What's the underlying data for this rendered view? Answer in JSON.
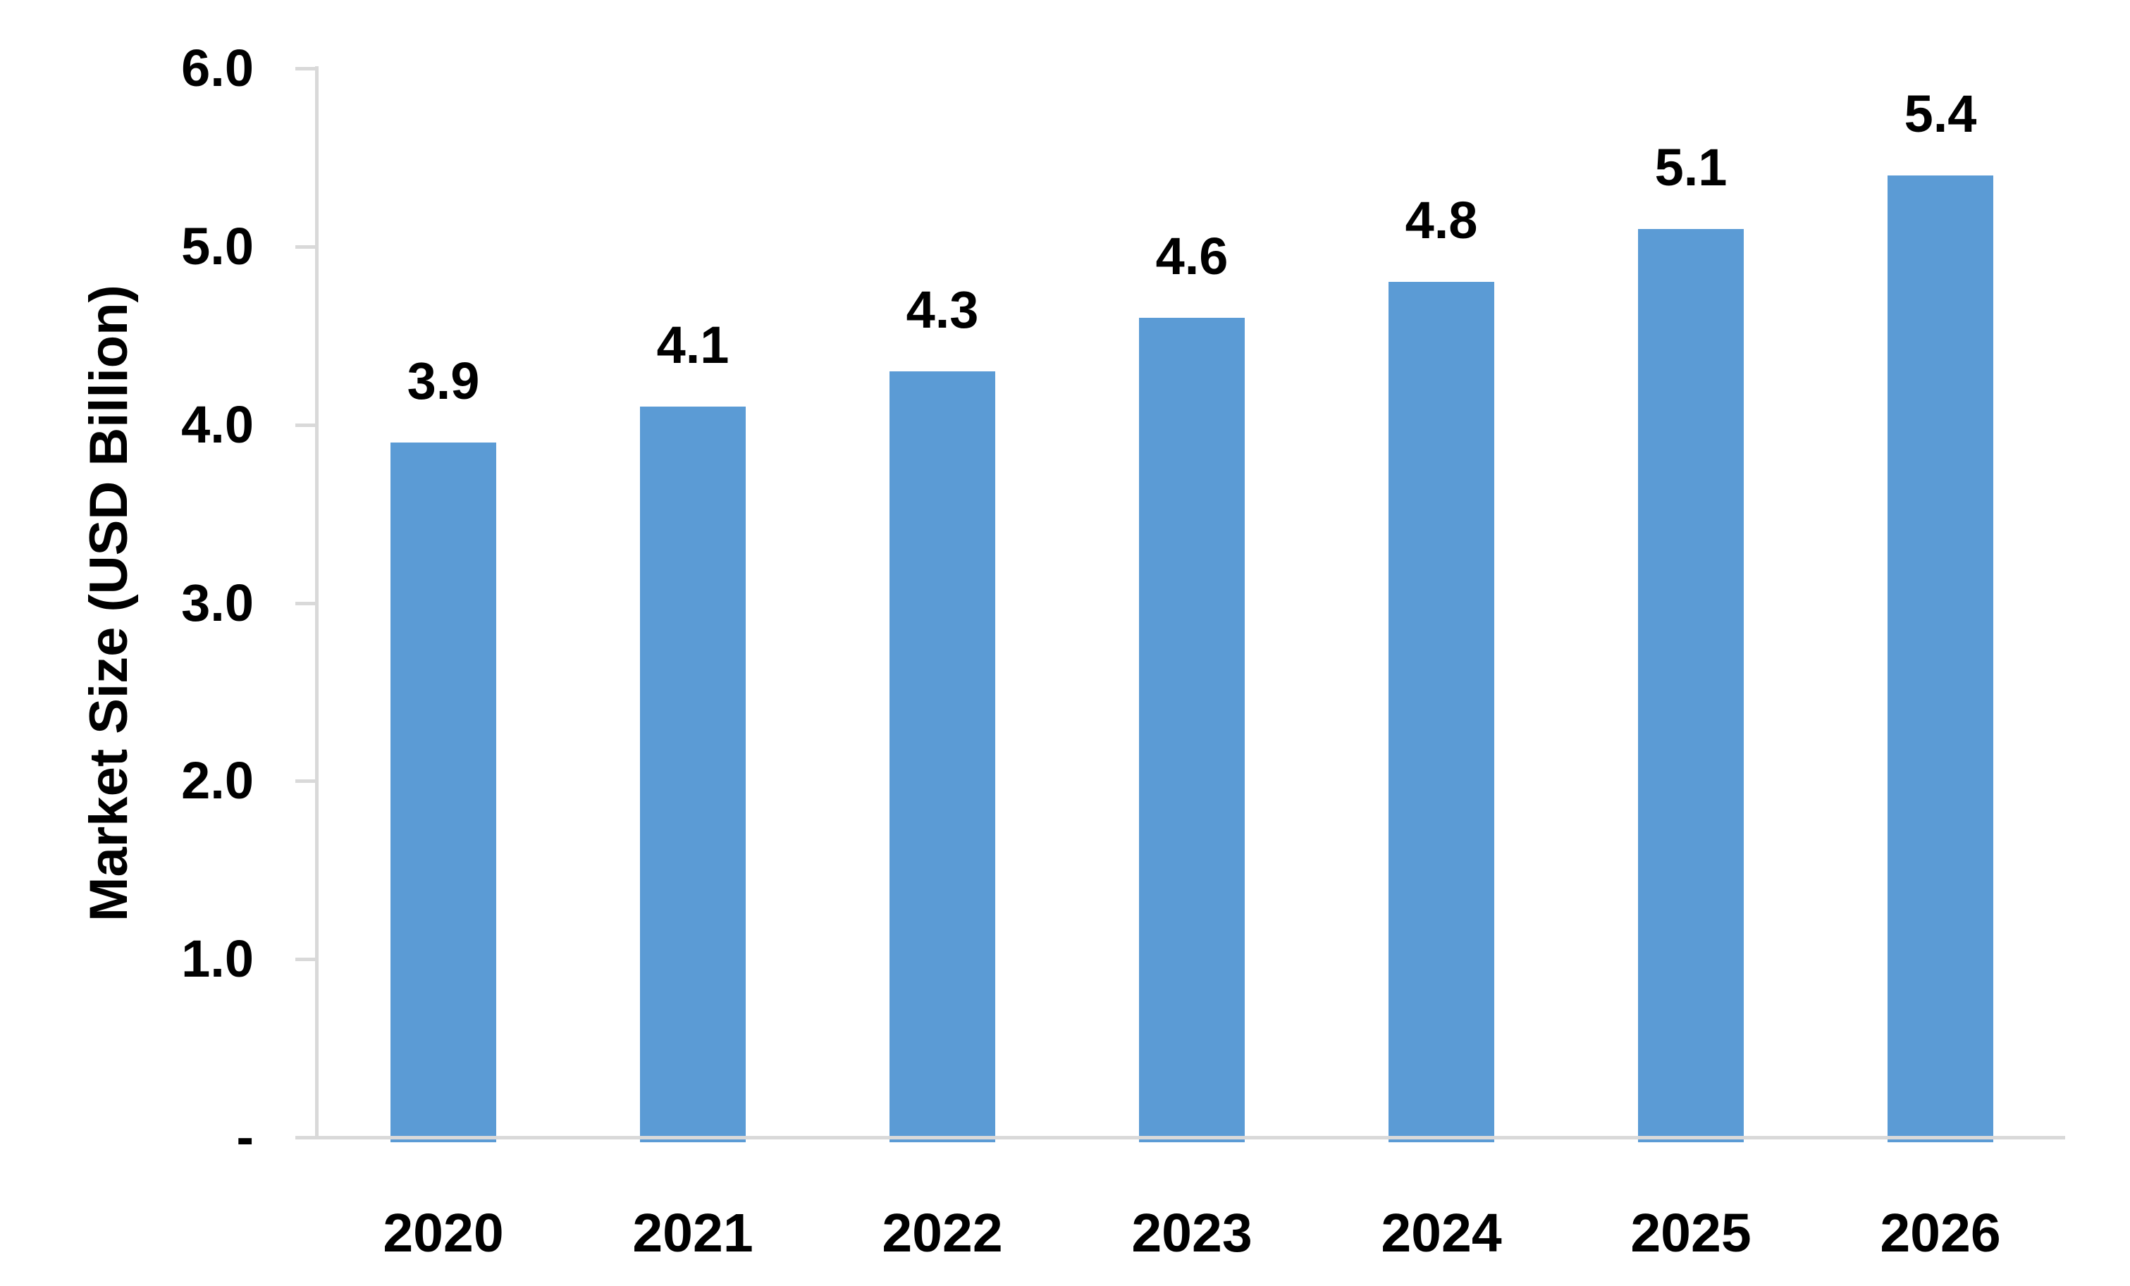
{
  "chart_data": {
    "type": "bar",
    "title": "",
    "xlabel": "",
    "ylabel": "Market Size (USD Billion)",
    "categories": [
      "2020",
      "2021",
      "2022",
      "2023",
      "2024",
      "2025",
      "2026"
    ],
    "values": [
      3.9,
      4.1,
      4.3,
      4.6,
      4.8,
      5.1,
      5.4
    ],
    "data_labels": [
      "3.9",
      "4.1",
      "4.3",
      "4.6",
      "4.8",
      "5.1",
      "5.4"
    ],
    "ylim": [
      0,
      6
    ],
    "yticks": [
      {
        "value": 0,
        "label": "-"
      },
      {
        "value": 1,
        "label": "1.0"
      },
      {
        "value": 2,
        "label": "2.0"
      },
      {
        "value": 3,
        "label": "3.0"
      },
      {
        "value": 4,
        "label": "4.0"
      },
      {
        "value": 5,
        "label": "5.0"
      },
      {
        "value": 6,
        "label": "6.0"
      }
    ],
    "grid": false,
    "legend_position": "none",
    "colors": {
      "bar": "#5B9BD5",
      "axis": "#D9D9D9",
      "text": "#000000",
      "background": "#FFFFFF"
    }
  }
}
